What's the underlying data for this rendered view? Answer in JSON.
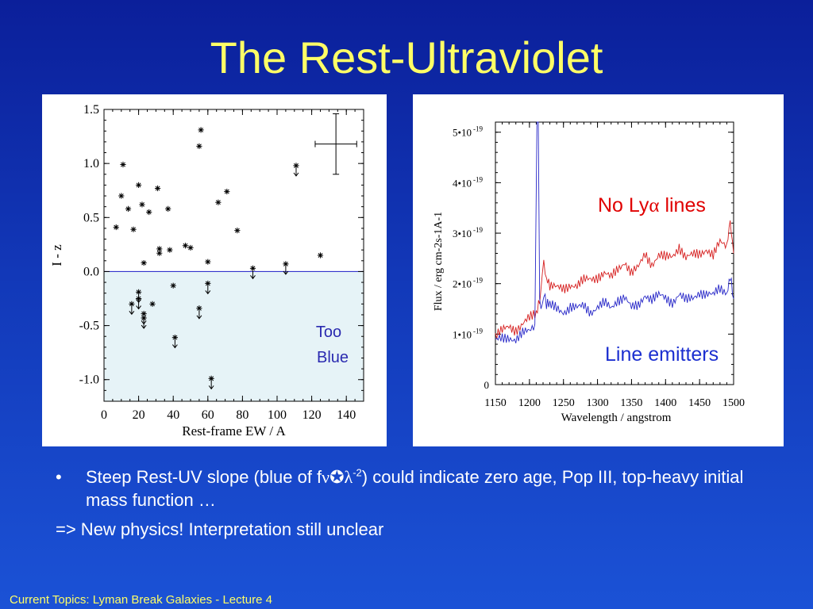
{
  "slide": {
    "title": "The Rest-Ultraviolet",
    "footer": "Current Topics:  Lyman Break Galaxies - Lecture 4",
    "colors": {
      "background": "#1238b8",
      "title": "#ffff66",
      "footer": "#ffff66",
      "text": "#ffffff"
    }
  },
  "bullets": {
    "item1_prefix": "Steep Rest-UV slope (blue of f",
    "item1_nu": "ν",
    "item1_symbol": "✪",
    "item1_lambda": "λ",
    "item1_exp": "-2",
    "item1_suffix": ") could indicate zero age, Pop III, top-heavy initial mass function …",
    "item2": "=> New physics!  Interpretation still unclear"
  },
  "chart_data": [
    {
      "type": "scatter",
      "xlabel": "Rest-frame EW / A",
      "ylabel": "I - z",
      "xlim": [
        0,
        150
      ],
      "ylim": [
        -1.2,
        1.5
      ],
      "xticks": [
        0,
        20,
        40,
        60,
        80,
        100,
        120,
        140
      ],
      "yticks": [
        1.5,
        1.0,
        0.5,
        0.0,
        -0.5,
        -1.0
      ],
      "ytick_labels": [
        "1.5",
        "1.0",
        "0.5",
        "0.0",
        "-0.5",
        "-1.0"
      ],
      "shaded_region": {
        "label_line1": "Too",
        "label_line2": "Blue",
        "y_max": 0.0,
        "color": "#e6f3f7",
        "label_color": "#2a2ab0"
      },
      "threshold_line": {
        "y": 0.0,
        "color": "#3333cc"
      },
      "error_bar": {
        "x": 134,
        "y": 1.18,
        "xerr": 12,
        "yerr": 0.28
      },
      "points": [
        {
          "x": 7,
          "y": 0.41
        },
        {
          "x": 10,
          "y": 0.7
        },
        {
          "x": 11,
          "y": 0.99
        },
        {
          "x": 14,
          "y": 0.58
        },
        {
          "x": 16,
          "y": -0.3,
          "limit": true
        },
        {
          "x": 17,
          "y": 0.39
        },
        {
          "x": 20,
          "y": 0.8
        },
        {
          "x": 20,
          "y": -0.19,
          "limit": true
        },
        {
          "x": 20,
          "y": -0.25,
          "limit": true
        },
        {
          "x": 22,
          "y": 0.62
        },
        {
          "x": 23,
          "y": 0.08
        },
        {
          "x": 23,
          "y": -0.39,
          "limit": true
        },
        {
          "x": 23,
          "y": -0.43,
          "limit": true
        },
        {
          "x": 26,
          "y": 0.55
        },
        {
          "x": 28,
          "y": -0.3
        },
        {
          "x": 31,
          "y": 0.77
        },
        {
          "x": 32,
          "y": 0.21
        },
        {
          "x": 32,
          "y": 0.17
        },
        {
          "x": 37,
          "y": 0.58
        },
        {
          "x": 38,
          "y": 0.2
        },
        {
          "x": 40,
          "y": -0.13
        },
        {
          "x": 41,
          "y": -0.61,
          "limit": true
        },
        {
          "x": 47,
          "y": 0.24
        },
        {
          "x": 50,
          "y": 0.22
        },
        {
          "x": 55,
          "y": 1.16
        },
        {
          "x": 55,
          "y": -0.34,
          "limit": true
        },
        {
          "x": 56,
          "y": 1.31
        },
        {
          "x": 60,
          "y": -0.11,
          "limit": true
        },
        {
          "x": 60,
          "y": 0.09
        },
        {
          "x": 62,
          "y": -0.99,
          "limit": true
        },
        {
          "x": 66,
          "y": 0.64
        },
        {
          "x": 71,
          "y": 0.74
        },
        {
          "x": 77,
          "y": 0.38
        },
        {
          "x": 86,
          "y": 0.03,
          "limit": true
        },
        {
          "x": 105,
          "y": 0.07,
          "limit": true
        },
        {
          "x": 111,
          "y": 0.98,
          "limit": true
        },
        {
          "x": 125,
          "y": 0.15
        }
      ]
    },
    {
      "type": "line",
      "xlabel": "Wavelength / angstrom",
      "ylabel": "Flux / erg cm-2s-1A-1",
      "xlim": [
        1150,
        1500
      ],
      "ylim": [
        0,
        5.2
      ],
      "xticks": [
        1150,
        1200,
        1250,
        1300,
        1350,
        1400,
        1450,
        1500
      ],
      "yticks": [
        0,
        1,
        2,
        3,
        4,
        5
      ],
      "ytick_labels": [
        "0",
        "1•10",
        "2•10",
        "3•10",
        "4•10",
        "5•10"
      ],
      "ytick_exp": "-19",
      "annotation_no_lya": {
        "pre": "No Ly",
        "greek": "α",
        "post": " lines",
        "color": "#e00000"
      },
      "annotation_line_emitters": {
        "text": "Line emitters",
        "color": "#1c2fd0"
      },
      "series": [
        {
          "color": "#d62020",
          "x": [
            1150,
            1160,
            1170,
            1180,
            1190,
            1200,
            1210,
            1215,
            1217,
            1219,
            1221,
            1225,
            1230,
            1240,
            1250,
            1260,
            1270,
            1280,
            1290,
            1300,
            1310,
            1320,
            1330,
            1340,
            1350,
            1360,
            1370,
            1380,
            1390,
            1400,
            1410,
            1420,
            1430,
            1440,
            1450,
            1460,
            1470,
            1480,
            1490,
            1495,
            1500
          ],
          "y": [
            0.95,
            1.05,
            1.15,
            1.1,
            1.2,
            1.3,
            1.4,
            1.6,
            1.9,
            2.2,
            2.35,
            2.05,
            1.95,
            1.9,
            1.9,
            2.0,
            1.95,
            2.05,
            2.1,
            2.15,
            2.2,
            2.1,
            2.3,
            2.45,
            2.2,
            2.3,
            2.6,
            2.4,
            2.55,
            2.5,
            2.55,
            2.75,
            2.5,
            2.55,
            2.6,
            2.7,
            2.55,
            2.8,
            2.75,
            3.2,
            2.6
          ]
        },
        {
          "color": "#2828c8",
          "x": [
            1150,
            1160,
            1170,
            1180,
            1190,
            1200,
            1208,
            1211,
            1213,
            1215,
            1217,
            1219,
            1221,
            1225,
            1230,
            1240,
            1250,
            1260,
            1270,
            1280,
            1290,
            1300,
            1310,
            1320,
            1330,
            1340,
            1350,
            1360,
            1370,
            1380,
            1390,
            1400,
            1410,
            1420,
            1430,
            1440,
            1450,
            1460,
            1470,
            1480,
            1490,
            1495,
            1500
          ],
          "y": [
            0.85,
            0.9,
            0.95,
            0.9,
            1.0,
            1.05,
            1.2,
            5.2,
            5.2,
            1.7,
            1.5,
            1.6,
            1.8,
            1.6,
            1.55,
            1.5,
            1.45,
            1.55,
            1.5,
            1.55,
            1.45,
            1.55,
            1.6,
            1.5,
            1.7,
            1.75,
            1.5,
            1.55,
            1.8,
            1.7,
            1.75,
            1.7,
            1.65,
            1.8,
            1.65,
            1.7,
            1.85,
            1.8,
            1.75,
            1.9,
            1.85,
            2.1,
            1.7
          ]
        }
      ]
    }
  ]
}
